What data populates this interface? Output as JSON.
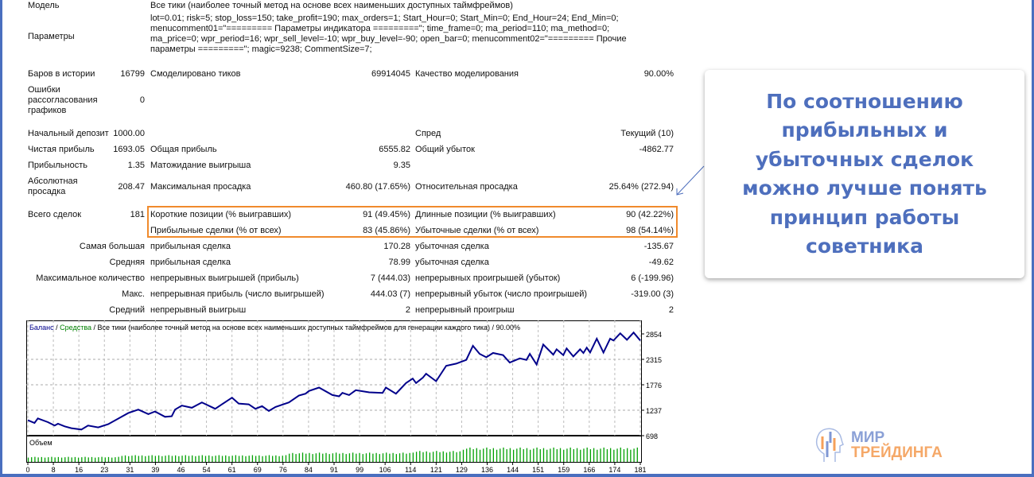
{
  "report": {
    "model_label": "Модель",
    "model_value": "Все тики (наиболее точный метод на основе всех наименьших доступных таймфреймов)",
    "params_label": "Параметры",
    "params_value": "lot=0.01; risk=5; stop_loss=150; take_profit=190; max_orders=1; Start_Hour=0; Start_Min=0; End_Hour=24; End_Min=0; menucomment01=\"========= Параметры индикатора =========\"; time_frame=0; ma_period=110; ma_method=0; ma_price=0; wpr_period=16; wpr_sell_level=-10; wpr_buy_level=-90; open_bar=0; menucomment02=\"========= Прочие параметры =========\"; magic=9238; CommentSize=7;",
    "bars_label": "Баров в истории",
    "bars_value": "16799",
    "ticks_label": "Смоделировано тиков",
    "ticks_value": "69914045",
    "quality_label": "Качество моделирования",
    "quality_value": "90.00%",
    "errors_label": "Ошибки рассогласования графиков",
    "errors_value": "0",
    "deposit_label": "Начальный депозит",
    "deposit_value": "1000.00",
    "spread_label": "Спред",
    "spread_value": "Текущий (10)",
    "net_label": "Чистая прибыль",
    "net_value": "1693.05",
    "gross_profit_label": "Общая прибыль",
    "gross_profit_value": "6555.82",
    "gross_loss_label": "Общий убыток",
    "gross_loss_value": "-4862.77",
    "pf_label": "Прибыльность",
    "pf_value": "1.35",
    "expected_label": "Матожидание выигрыша",
    "expected_value": "9.35",
    "abs_dd_label": "Абсолютная просадка",
    "abs_dd_value": "208.47",
    "max_dd_label": "Максимальная просадка",
    "max_dd_value": "460.80 (17.65%)",
    "rel_dd_label": "Относительная просадка",
    "rel_dd_value": "25.64% (272.94)",
    "total_label": "Всего сделок",
    "total_value": "181",
    "short_label": "Короткие позиции (% выигравших)",
    "short_value": "91 (49.45%)",
    "long_label": "Длинные позиции (% выигравших)",
    "long_value": "90 (42.22%)",
    "profit_trades_label": "Прибыльные сделки (% от всех)",
    "profit_trades_value": "83 (45.86%)",
    "loss_trades_label": "Убыточные сделки (% от всех)",
    "loss_trades_value": "98 (54.14%)",
    "largest_label": "Самая большая",
    "largest_profit_label": "прибыльная сделка",
    "largest_profit_value": "170.28",
    "largest_loss_label": "убыточная сделка",
    "largest_loss_value": "-135.67",
    "average_label": "Средняя",
    "average_profit_label": "прибыльная сделка",
    "average_profit_value": "78.99",
    "average_loss_label": "убыточная сделка",
    "average_loss_value": "-49.62",
    "maxcount_label": "Максимальное количество",
    "maxcount_wins_label": "непрерывных выигрышей (прибыль)",
    "maxcount_wins_value": "7 (444.03)",
    "maxcount_losses_label": "непрерывных проигрышей (убыток)",
    "maxcount_losses_value": "6 (-199.96)",
    "max_label": "Макс.",
    "max_profit_label": "непрерывная прибыль (число выигрышей)",
    "max_profit_value": "444.03 (7)",
    "max_loss_label": "непрерывный убыток (число проигрышей)",
    "max_loss_value": "-319.00 (3)",
    "avgcons_label": "Средний",
    "avgcons_wins_label": "непрерывный выигрыш",
    "avgcons_wins_value": "2",
    "avgcons_losses_label": "непрерывный проигрыш",
    "avgcons_losses_value": "2"
  },
  "callout": {
    "lines": [
      "По соотношению",
      "прибыльных и",
      "убыточных сделок",
      "можно лучше понять",
      "принцип работы",
      "советника"
    ]
  },
  "logo": {
    "line1": "МИР",
    "line2": "ТРЕЙДИНГА"
  },
  "colors": {
    "balance": "#00008b",
    "equity": "#008000",
    "highlight": "#f08a2c",
    "accent": "#4e6fbd"
  },
  "chart_data": {
    "type": "line",
    "title_balance": "Баланс",
    "title_sep": " / ",
    "title_equity": "Средства",
    "title_rest": " / Все тики (наиболее точный метод на основе всех наименьших доступных таймфреймов для генерации каждого тика) / 90.00%",
    "volume_label": "Объем",
    "ylim": [
      698,
      2854
    ],
    "yticks": [
      "2854",
      "2315",
      "1776",
      "1237",
      "698"
    ],
    "xlim": [
      0,
      183
    ],
    "xticks": [
      "0",
      "8",
      "16",
      "23",
      "31",
      "39",
      "46",
      "54",
      "61",
      "69",
      "76",
      "84",
      "91",
      "99",
      "106",
      "114",
      "121",
      "129",
      "136",
      "144",
      "151",
      "159",
      "166",
      "174",
      "181"
    ],
    "balance": [
      [
        0,
        1025
      ],
      [
        2,
        968
      ],
      [
        3,
        1064
      ],
      [
        6,
        985
      ],
      [
        8,
        912
      ],
      [
        9,
        951
      ],
      [
        11,
        895
      ],
      [
        13,
        856
      ],
      [
        16,
        827
      ],
      [
        18,
        912
      ],
      [
        21,
        873
      ],
      [
        24,
        940
      ],
      [
        28,
        1098
      ],
      [
        30,
        1177
      ],
      [
        33,
        1250
      ],
      [
        36,
        1154
      ],
      [
        38,
        1210
      ],
      [
        41,
        1098
      ],
      [
        43,
        1109
      ],
      [
        44,
        1250
      ],
      [
        46,
        1334
      ],
      [
        49,
        1289
      ],
      [
        52,
        1402
      ],
      [
        56,
        1267
      ],
      [
        58,
        1362
      ],
      [
        61,
        1503
      ],
      [
        63,
        1379
      ],
      [
        66,
        1362
      ],
      [
        68,
        1267
      ],
      [
        70,
        1323
      ],
      [
        72,
        1222
      ],
      [
        74,
        1306
      ],
      [
        78,
        1402
      ],
      [
        81,
        1548
      ],
      [
        83,
        1588
      ],
      [
        84,
        1644
      ],
      [
        87,
        1717
      ],
      [
        91,
        1559
      ],
      [
        93,
        1531
      ],
      [
        94,
        1604
      ],
      [
        96,
        1559
      ],
      [
        98,
        1661
      ],
      [
        102,
        1616
      ],
      [
        106,
        1604
      ],
      [
        107,
        1717
      ],
      [
        110,
        1588
      ],
      [
        113,
        1813
      ],
      [
        115,
        1908
      ],
      [
        116,
        1813
      ],
      [
        118,
        1925
      ],
      [
        119,
        2010
      ],
      [
        122,
        1852
      ],
      [
        125,
        2179
      ],
      [
        128,
        2224
      ],
      [
        131,
        2303
      ],
      [
        133,
        2601
      ],
      [
        135,
        2432
      ],
      [
        137,
        2359
      ],
      [
        139,
        2449
      ],
      [
        142,
        2404
      ],
      [
        144,
        2246
      ],
      [
        147,
        2336
      ],
      [
        149,
        2303
      ],
      [
        150,
        2432
      ],
      [
        152,
        2207
      ],
      [
        154,
        2629
      ],
      [
        157,
        2415
      ],
      [
        158,
        2528
      ],
      [
        160,
        2404
      ],
      [
        161,
        2545
      ],
      [
        163,
        2376
      ],
      [
        165,
        2528
      ],
      [
        166,
        2449
      ],
      [
        167,
        2562
      ],
      [
        168,
        2460
      ],
      [
        170,
        2753
      ],
      [
        172,
        2460
      ],
      [
        174,
        2753
      ],
      [
        175,
        2714
      ],
      [
        177,
        2866
      ],
      [
        179,
        2730
      ],
      [
        181,
        2882
      ],
      [
        183,
        2714
      ]
    ],
    "volume_levels": [
      [
        0,
        28,
        0.3
      ],
      [
        28,
        78,
        0.4
      ],
      [
        78,
        115,
        0.55
      ],
      [
        115,
        130,
        0.65
      ],
      [
        130,
        183,
        0.85
      ]
    ]
  }
}
